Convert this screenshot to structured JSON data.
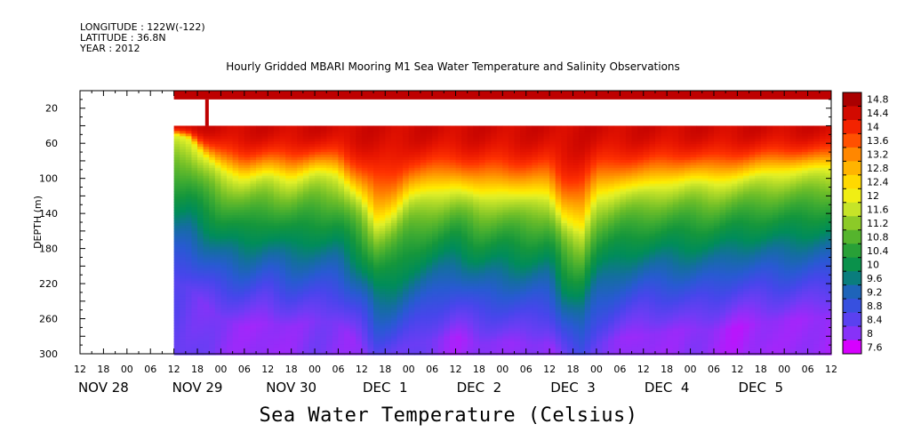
{
  "header": {
    "longitude": "LONGITUDE : 122W(-122)",
    "latitude": "LATITUDE : 36.8N",
    "year": "YEAR : 2012"
  },
  "chart_data": {
    "type": "heatmap",
    "title": "Hourly Gridded MBARI Mooring M1 Sea Water Temperature and Salinity Observations",
    "bottom_title": "Sea Water Temperature (Celsius)",
    "ylabel": "DEPTH (m)",
    "y_inverted": true,
    "ylim": [
      0,
      300
    ],
    "y_ticks": [
      20,
      60,
      100,
      140,
      180,
      220,
      260,
      300
    ],
    "x_range_hours": [
      -6,
      186
    ],
    "x_hour_ticks": [
      "12",
      "18",
      "00",
      "06",
      "12",
      "18",
      "00",
      "06",
      "12",
      "18",
      "00",
      "06",
      "12",
      "18",
      "00",
      "06",
      "12",
      "18",
      "00",
      "06",
      "12",
      "18",
      "00",
      "06",
      "12",
      "18",
      "00",
      "06",
      "12",
      "18",
      "00",
      "06",
      "12"
    ],
    "x_day_labels": [
      "NOV 28",
      "NOV 29",
      "NOV 30",
      "DEC  1",
      "DEC  2",
      "DEC  3",
      "DEC  4",
      "DEC  5"
    ],
    "data_start_hour": 18,
    "data_top_depth": 40,
    "surface_band_depth": [
      0,
      10
    ],
    "colorbar": {
      "labels": [
        "14.8",
        "14.4",
        "14",
        "13.6",
        "13.2",
        "12.8",
        "12.4",
        "12",
        "11.6",
        "11.2",
        "10.8",
        "10.4",
        "10",
        "9.6",
        "9.2",
        "8.8",
        "8.4",
        "8",
        "7.6"
      ],
      "min": 7.6,
      "max": 15.0
    },
    "surface_temperature": 14.8,
    "thermocline": {
      "hours": [
        18,
        22,
        26,
        30,
        36,
        42,
        48,
        54,
        60,
        66,
        70,
        74,
        78,
        84,
        90,
        96,
        102,
        108,
        114,
        118,
        122,
        126,
        132,
        138,
        144,
        150,
        156,
        162,
        168,
        174,
        180,
        186
      ],
      "depths": [
        50,
        55,
        75,
        90,
        100,
        95,
        100,
        92,
        95,
        125,
        150,
        140,
        120,
        115,
        110,
        120,
        115,
        120,
        118,
        150,
        160,
        120,
        112,
        110,
        105,
        102,
        104,
        100,
        95,
        92,
        90,
        88
      ]
    },
    "deep_temperature": {
      "hours": [
        18,
        30,
        42,
        54,
        66,
        78,
        90,
        102,
        114,
        126,
        138,
        150,
        162,
        174,
        186
      ],
      "values": [
        8.6,
        8.2,
        8.0,
        8.3,
        8.1,
        8.5,
        8.0,
        8.2,
        8.1,
        8.4,
        8.0,
        8.2,
        7.9,
        8.1,
        8.0
      ]
    }
  }
}
